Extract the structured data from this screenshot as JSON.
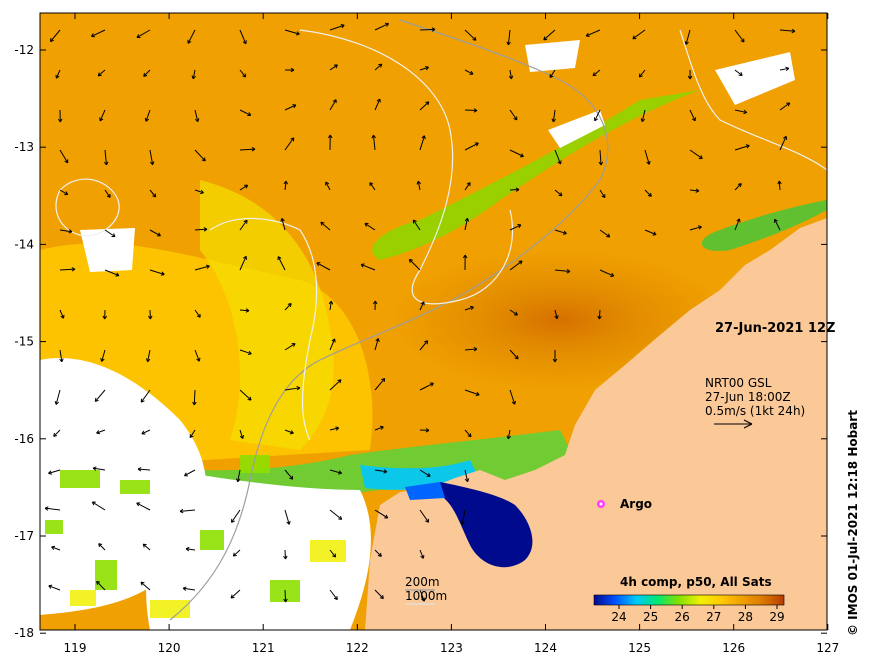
{
  "map": {
    "date_label": "27-Jun-2021 12Z",
    "currents": {
      "product": "NRT00 GSL",
      "time": "27-Jun 18:00Z",
      "scale": "0.5m/s (1kt 24h)"
    },
    "argo_label": "Argo",
    "bathymetry": {
      "shallow": "200m",
      "deep": "1000m"
    },
    "colorbar": {
      "title": "4h comp, p50, All Sats",
      "ticks": [
        "24",
        "25",
        "26",
        "27",
        "28",
        "29"
      ],
      "colors": [
        "#000a8c",
        "#0050ff",
        "#00c8ff",
        "#00e678",
        "#7de000",
        "#f0f000",
        "#ffc800",
        "#f0a000",
        "#dc7800",
        "#b43c00"
      ]
    },
    "credit": "© IMOS 01-Jul-2021 12:18 Hobart",
    "x_ticks": [
      "119",
      "120",
      "121",
      "122",
      "123",
      "124",
      "125",
      "126",
      "127"
    ],
    "y_ticks": [
      "-12",
      "-13",
      "-14",
      "-15",
      "-16",
      "-17",
      "-18"
    ],
    "land_color": "#fbc898",
    "ocean_color": "#f0a000"
  }
}
